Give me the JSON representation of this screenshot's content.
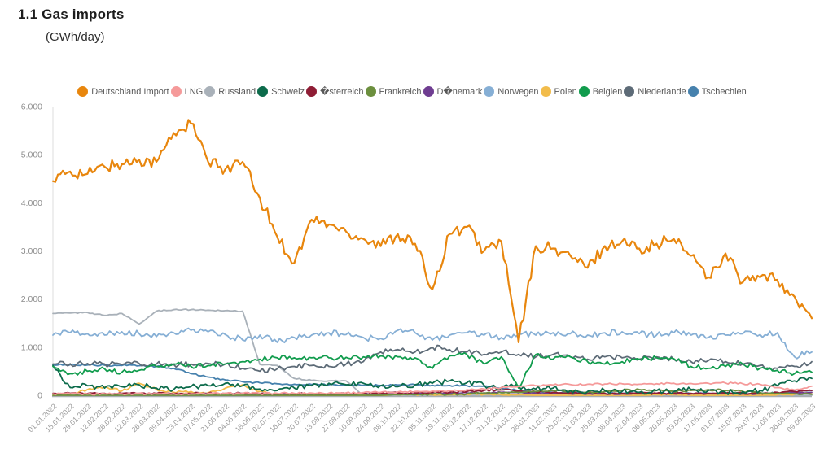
{
  "page": {
    "title": "1.1 Gas imports",
    "subtitle": "(GWh/day)"
  },
  "chart_data": {
    "type": "line",
    "title": "1.1 Gas imports (GWh/day)",
    "xlabel": "",
    "ylabel": "GWh/day",
    "ylim": [
      0,
      6000
    ],
    "grid": false,
    "legend_position": "top",
    "y_tick_values": [
      0,
      1000,
      2000,
      3000,
      4000,
      5000,
      6000
    ],
    "y_tick_labels": [
      "0",
      "1.000",
      "2.000",
      "3.000",
      "4.000",
      "5.000",
      "6.000"
    ],
    "x_tick_labels": [
      "01.01.2022",
      "15.01.2022",
      "29.01.2022",
      "12.02.2022",
      "26.02.2022",
      "12.03.2022",
      "26.03.2022",
      "09.04.2022",
      "23.04.2022",
      "07.05.2022",
      "21.05.2022",
      "04.06.2022",
      "18.06.2022",
      "02.07.2022",
      "16.07.2022",
      "30.07.2022",
      "13.08.2022",
      "27.08.2022",
      "10.09.2022",
      "24.09.2022",
      "08.10.2022",
      "22.10.2022",
      "05.11.2022",
      "19.11.2022",
      "03.12.2022",
      "17.12.2022",
      "31.12.2022",
      "14.01.2023",
      "28.01.2023",
      "11.02.2023",
      "25.02.2023",
      "11.03.2023",
      "25.03.2023",
      "08.04.2023",
      "22.04.2023",
      "06.05.2023",
      "20.05.2023",
      "03.06.2023",
      "17.06.2023",
      "01.07.2023",
      "15.07.2023",
      "29.07.2023",
      "12.08.2023",
      "26.08.2023",
      "09.09.2023"
    ],
    "series": [
      {
        "name": "Deutschland Import",
        "color": "#E8860D",
        "noise": 130,
        "values": [
          4450,
          4650,
          4600,
          4750,
          4800,
          4900,
          4850,
          5450,
          5650,
          4850,
          4700,
          4850,
          4100,
          3300,
          2750,
          3650,
          3550,
          3400,
          3250,
          3100,
          3350,
          3150,
          2200,
          3350,
          3500,
          3000,
          3200,
          1100,
          3100,
          3050,
          2900,
          2650,
          3100,
          3200,
          3050,
          3150,
          3250,
          2900,
          2450,
          2950,
          2350,
          2450,
          2400,
          2050,
          1600
        ]
      },
      {
        "name": "LNG",
        "color": "#F59A9A",
        "noise": 20,
        "values": [
          30,
          30,
          25,
          30,
          30,
          35,
          30,
          35,
          30,
          35,
          40,
          40,
          35,
          40,
          40,
          45,
          45,
          50,
          55,
          60,
          70,
          80,
          90,
          100,
          115,
          130,
          160,
          185,
          200,
          215,
          225,
          230,
          235,
          240,
          230,
          240,
          250,
          245,
          250,
          255,
          240,
          230,
          160,
          110,
          190
        ]
      },
      {
        "name": "Russland",
        "color": "#A9B1B9",
        "noise": 12,
        "values": [
          1700,
          1710,
          1720,
          1660,
          1700,
          1480,
          1750,
          1780,
          1780,
          1770,
          1760,
          1750,
          640,
          620,
          350,
          310,
          300,
          300,
          0,
          0,
          0,
          0,
          0,
          0,
          0,
          0,
          0,
          0,
          0,
          0,
          0,
          0,
          0,
          0,
          0,
          0,
          0,
          0,
          0,
          0,
          0,
          0,
          0,
          0,
          0
        ]
      },
      {
        "name": "Schweiz",
        "color": "#0C6B4B",
        "noise": 55,
        "values": [
          620,
          160,
          200,
          150,
          180,
          220,
          150,
          120,
          180,
          200,
          250,
          200,
          130,
          100,
          150,
          200,
          250,
          220,
          250,
          200,
          180,
          220,
          250,
          300,
          260,
          210,
          160,
          190,
          130,
          150,
          100,
          80,
          100,
          80,
          60,
          100,
          80,
          120,
          100,
          60,
          80,
          100,
          200,
          300,
          350
        ]
      },
      {
        "name": "�sterreich",
        "color": "#8F1D35",
        "noise": 20,
        "values": [
          40,
          40,
          35,
          40,
          40,
          40,
          35,
          40,
          40,
          40,
          40,
          40,
          30,
          30,
          30,
          30,
          30,
          30,
          40,
          40,
          50,
          50,
          60,
          60,
          80,
          100,
          110,
          90,
          70,
          60,
          50,
          50,
          40,
          40,
          40,
          40,
          40,
          40,
          40,
          40,
          40,
          40,
          60,
          80,
          100
        ]
      },
      {
        "name": "Frankreich",
        "color": "#6C8F3E",
        "noise": 20,
        "values": [
          0,
          0,
          0,
          0,
          0,
          0,
          0,
          0,
          0,
          0,
          0,
          0,
          0,
          0,
          0,
          0,
          0,
          0,
          0,
          0,
          10,
          10,
          20,
          20,
          30,
          40,
          50,
          60,
          80,
          100,
          80,
          60,
          80,
          100,
          120,
          100,
          80,
          100,
          120,
          100,
          80,
          60,
          40,
          30,
          20
        ]
      },
      {
        "name": "D�nemark",
        "color": "#6F3D91",
        "noise": 12,
        "values": [
          30,
          30,
          30,
          30,
          30,
          30,
          30,
          30,
          30,
          30,
          30,
          30,
          20,
          20,
          20,
          20,
          20,
          20,
          30,
          30,
          30,
          30,
          40,
          40,
          50,
          50,
          60,
          50,
          40,
          40,
          30,
          30,
          30,
          30,
          40,
          40,
          30,
          30,
          40,
          40,
          30,
          30,
          40,
          50,
          60
        ]
      },
      {
        "name": "Norwegen",
        "color": "#86AFD5",
        "noise": 65,
        "values": [
          1250,
          1300,
          1280,
          1250,
          1320,
          1280,
          1220,
          1300,
          1350,
          1320,
          1260,
          1150,
          1250,
          1100,
          1200,
          1250,
          1300,
          1260,
          1200,
          1180,
          1350,
          1300,
          1150,
          1250,
          1300,
          1250,
          1200,
          1280,
          1250,
          1300,
          1280,
          1250,
          1300,
          1320,
          1280,
          1250,
          1300,
          1250,
          1200,
          1250,
          1280,
          1260,
          1300,
          800,
          900
        ]
      },
      {
        "name": "Polen",
        "color": "#F2BC4B",
        "noise": 25,
        "values": [
          0,
          20,
          120,
          180,
          90,
          250,
          120,
          60,
          80,
          50,
          150,
          220,
          80,
          0,
          0,
          0,
          0,
          0,
          0,
          0,
          20,
          20,
          10,
          10,
          20,
          20,
          10,
          10,
          0,
          0,
          0,
          0,
          0,
          0,
          0,
          10,
          10,
          0,
          0,
          0,
          0,
          0,
          10,
          20,
          30
        ]
      },
      {
        "name": "Belgien",
        "color": "#119C4D",
        "noise": 50,
        "values": [
          600,
          450,
          500,
          550,
          480,
          520,
          600,
          650,
          600,
          620,
          650,
          700,
          750,
          780,
          780,
          780,
          780,
          790,
          800,
          820,
          800,
          780,
          560,
          820,
          850,
          650,
          800,
          150,
          850,
          750,
          800,
          700,
          650,
          700,
          750,
          780,
          760,
          600,
          560,
          600,
          650,
          560,
          520,
          450,
          480
        ]
      },
      {
        "name": "Niederlande",
        "color": "#5D6B77",
        "noise": 55,
        "values": [
          650,
          655,
          660,
          650,
          640,
          660,
          650,
          640,
          650,
          660,
          650,
          560,
          500,
          550,
          600,
          620,
          600,
          650,
          700,
          900,
          950,
          900,
          1000,
          950,
          900,
          850,
          900,
          850,
          800,
          850,
          800,
          750,
          800,
          780,
          750,
          800,
          750,
          700,
          720,
          700,
          650,
          620,
          560,
          600,
          700
        ]
      },
      {
        "name": "Tschechien",
        "color": "#4681AD",
        "noise": 18,
        "values": [
          630,
          635,
          630,
          625,
          620,
          615,
          600,
          560,
          450,
          380,
          320,
          280,
          260,
          240,
          230,
          225,
          220,
          215,
          210,
          205,
          215,
          220,
          210,
          205,
          200,
          190,
          150,
          100,
          80,
          60,
          50,
          50,
          40,
          40,
          30,
          30,
          30,
          30,
          30,
          30,
          30,
          30,
          50,
          80,
          100
        ]
      }
    ],
    "draw_order": [
      "Russland",
      "Tschechien",
      "Polen",
      "D�nemark",
      "�sterreich",
      "Frankreich",
      "Schweiz",
      "Niederlande",
      "Belgien",
      "Norwegen",
      "LNG",
      "Deutschland Import"
    ]
  }
}
